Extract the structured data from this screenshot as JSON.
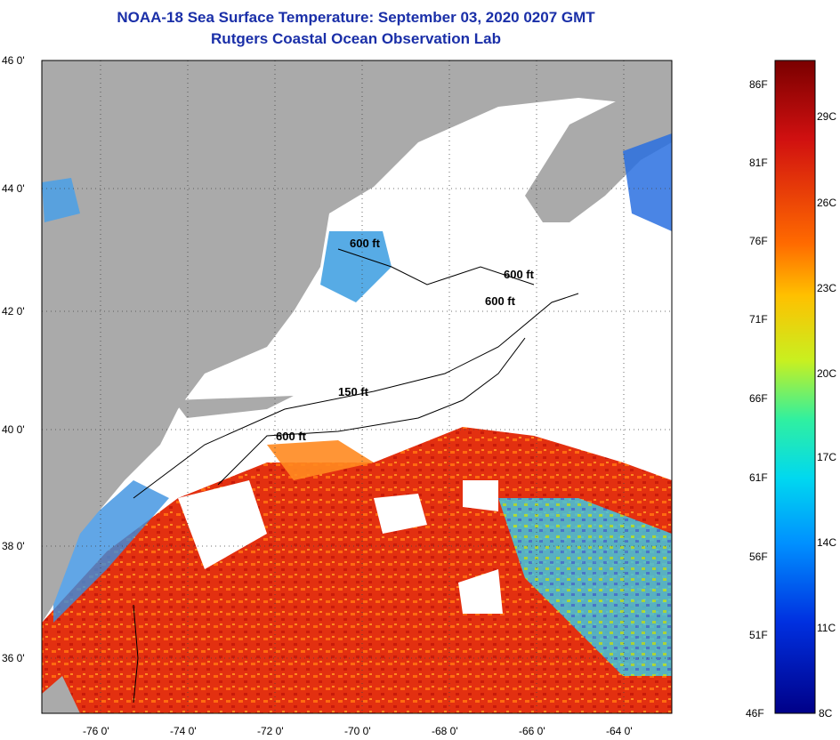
{
  "title": "NOAA-18 Sea Surface Temperature:  September 03, 2020 0207 GMT",
  "subtitle": "Rutgers Coastal Ocean Observation Lab",
  "axes": {
    "lat_labels": [
      "46 0'",
      "44 0'",
      "42 0'",
      "40 0'",
      "38 0'",
      "36 0'"
    ],
    "lon_labels": [
      "-76 0'",
      "-74 0'",
      "-72 0'",
      "-70 0'",
      "-68 0'",
      "-66 0'",
      "-64 0'"
    ]
  },
  "contours": [
    "600 ft",
    "600 ft",
    "600 ft",
    "150 ft",
    "600 ft"
  ],
  "colorbar": {
    "fahrenheit": [
      "86F",
      "81F",
      "76F",
      "71F",
      "66F",
      "61F",
      "56F",
      "51F",
      "46F"
    ],
    "celsius": [
      "29C",
      "26C",
      "23C",
      "20C",
      "17C",
      "14C",
      "11C",
      "8C"
    ]
  },
  "colors": {
    "land": "#aaaaaa",
    "cloud": "#ffffff",
    "warm": "#e02a10",
    "cool": "#2f7ad8",
    "title": "#1a2fa8"
  }
}
